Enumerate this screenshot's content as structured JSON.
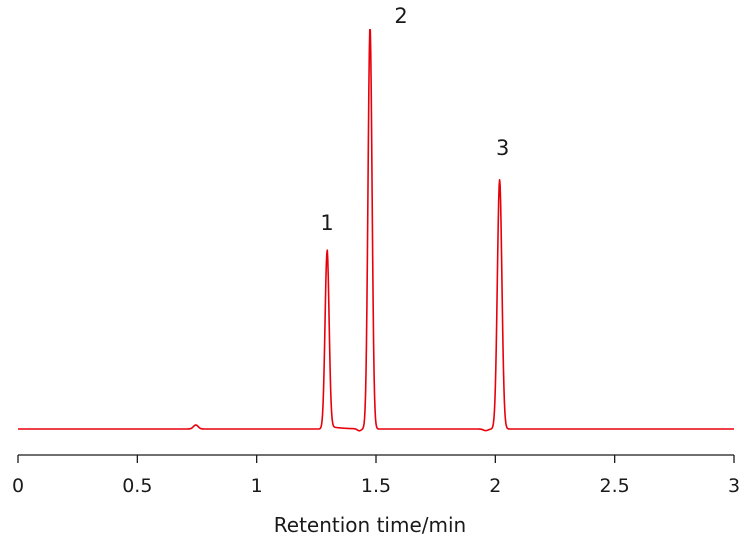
{
  "chart_data": {
    "type": "line",
    "title": "",
    "xlabel": "Retention time/min",
    "ylabel": "",
    "xlim": [
      0,
      3
    ],
    "ylim": [
      0,
      1
    ],
    "grid": false,
    "x_ticks": [
      "0",
      "0.5",
      "1",
      "1.5",
      "2",
      "2.5",
      "3"
    ],
    "series": [
      {
        "color": "#e8000b",
        "peaks": [
          {
            "label": "1",
            "x": 1.295,
            "y": 0.44
          },
          {
            "label": "2",
            "x": 1.475,
            "y": 1.0
          },
          {
            "label": "3",
            "x": 2.018,
            "y": 0.62
          }
        ],
        "minor_bump": {
          "x": 0.745,
          "y": 0.01
        }
      }
    ]
  }
}
